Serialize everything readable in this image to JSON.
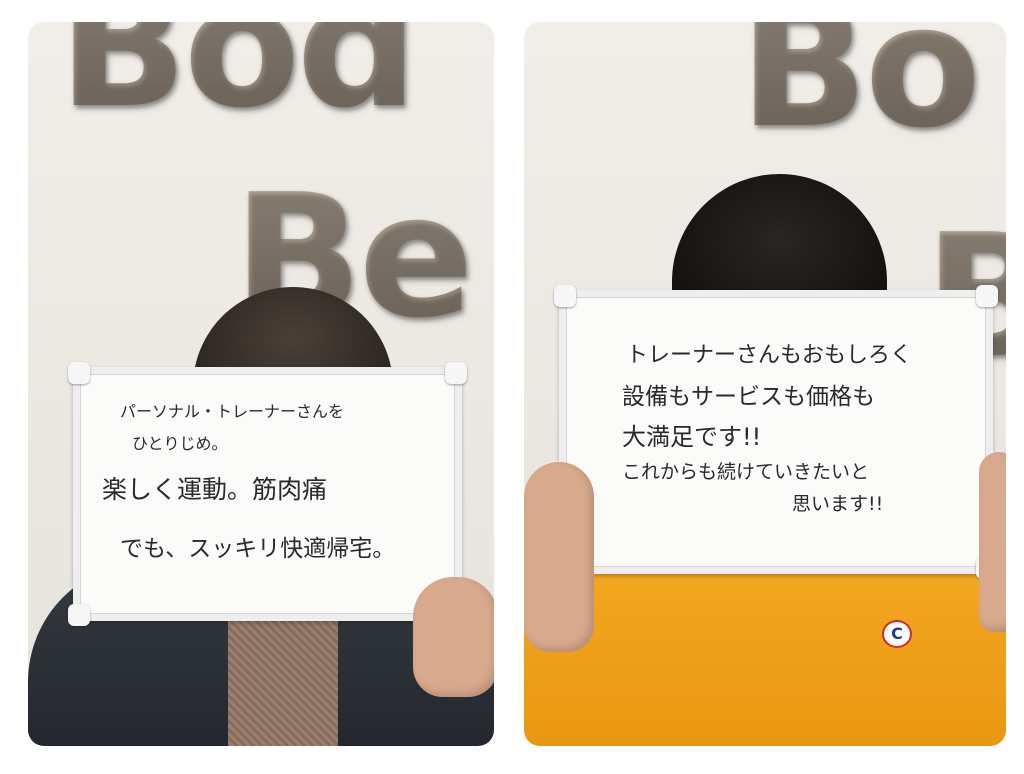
{
  "panels": [
    {
      "wall_text_top": "Bod",
      "wall_text_mid": "Be",
      "board_lines": [
        "パーソナル・トレーナーさんを",
        "ひとりじめ。",
        "楽しく運動。筋肉痛",
        "でも、スッキリ快適帰宅。"
      ]
    },
    {
      "wall_text_top": "Bo",
      "wall_text_mid": "B",
      "board_lines": [
        "トレーナーさんもおもしろく",
        "設備もサービスも価格も",
        "大満足です!!",
        "これからも続けていきたいと",
        "思います!!"
      ],
      "shirt_logo": "C"
    }
  ],
  "colors": {
    "wall": "#ece8e2",
    "board": "#fbfbfa",
    "jacket": "#2b2f36",
    "sweater": "#f0a21c",
    "skin": "#d8a98c"
  }
}
